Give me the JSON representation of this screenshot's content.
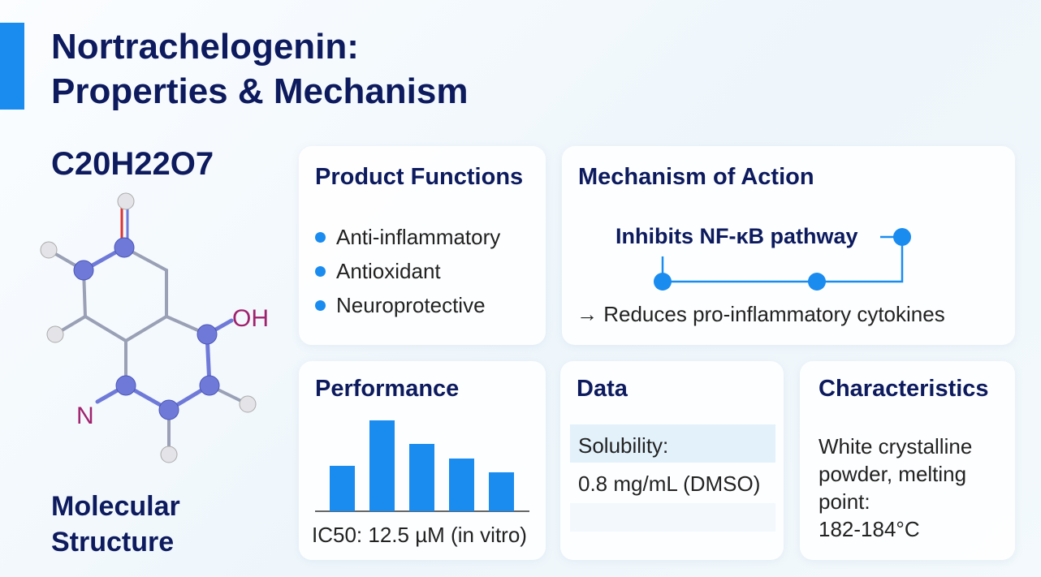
{
  "header": {
    "title_lines": [
      "Nortrachelogenin:",
      "Properties & Mechanism"
    ]
  },
  "molecule": {
    "formula": "C20H22O7",
    "atom_labels": [
      "OH",
      "N"
    ],
    "caption_lines": [
      "Molecular",
      "Structure"
    ]
  },
  "functions": {
    "title": "Product Functions",
    "items": [
      "Anti-inflammatory",
      "Antioxidant",
      "Neuroprotective"
    ]
  },
  "mechanism": {
    "title": "Mechanism of Action",
    "label": "Inhibits NF-κB pathway",
    "effect": "→ Reduces pro-inflammatory cytokines"
  },
  "performance": {
    "title": "Performance",
    "chart": {
      "type": "bar",
      "values": [
        56,
        112,
        83,
        65,
        48
      ],
      "color": "#1a8cf0"
    },
    "caption": "IC50: 12.5 µM (in vitro)"
  },
  "data": {
    "title": "Data",
    "label": "Solubility:",
    "value": "0.8 mg/mL (DMSO)"
  },
  "characteristics": {
    "title": "Characteristics",
    "lines": [
      "White crystalline",
      "powder, melting",
      "point:",
      "182-184°C"
    ]
  }
}
